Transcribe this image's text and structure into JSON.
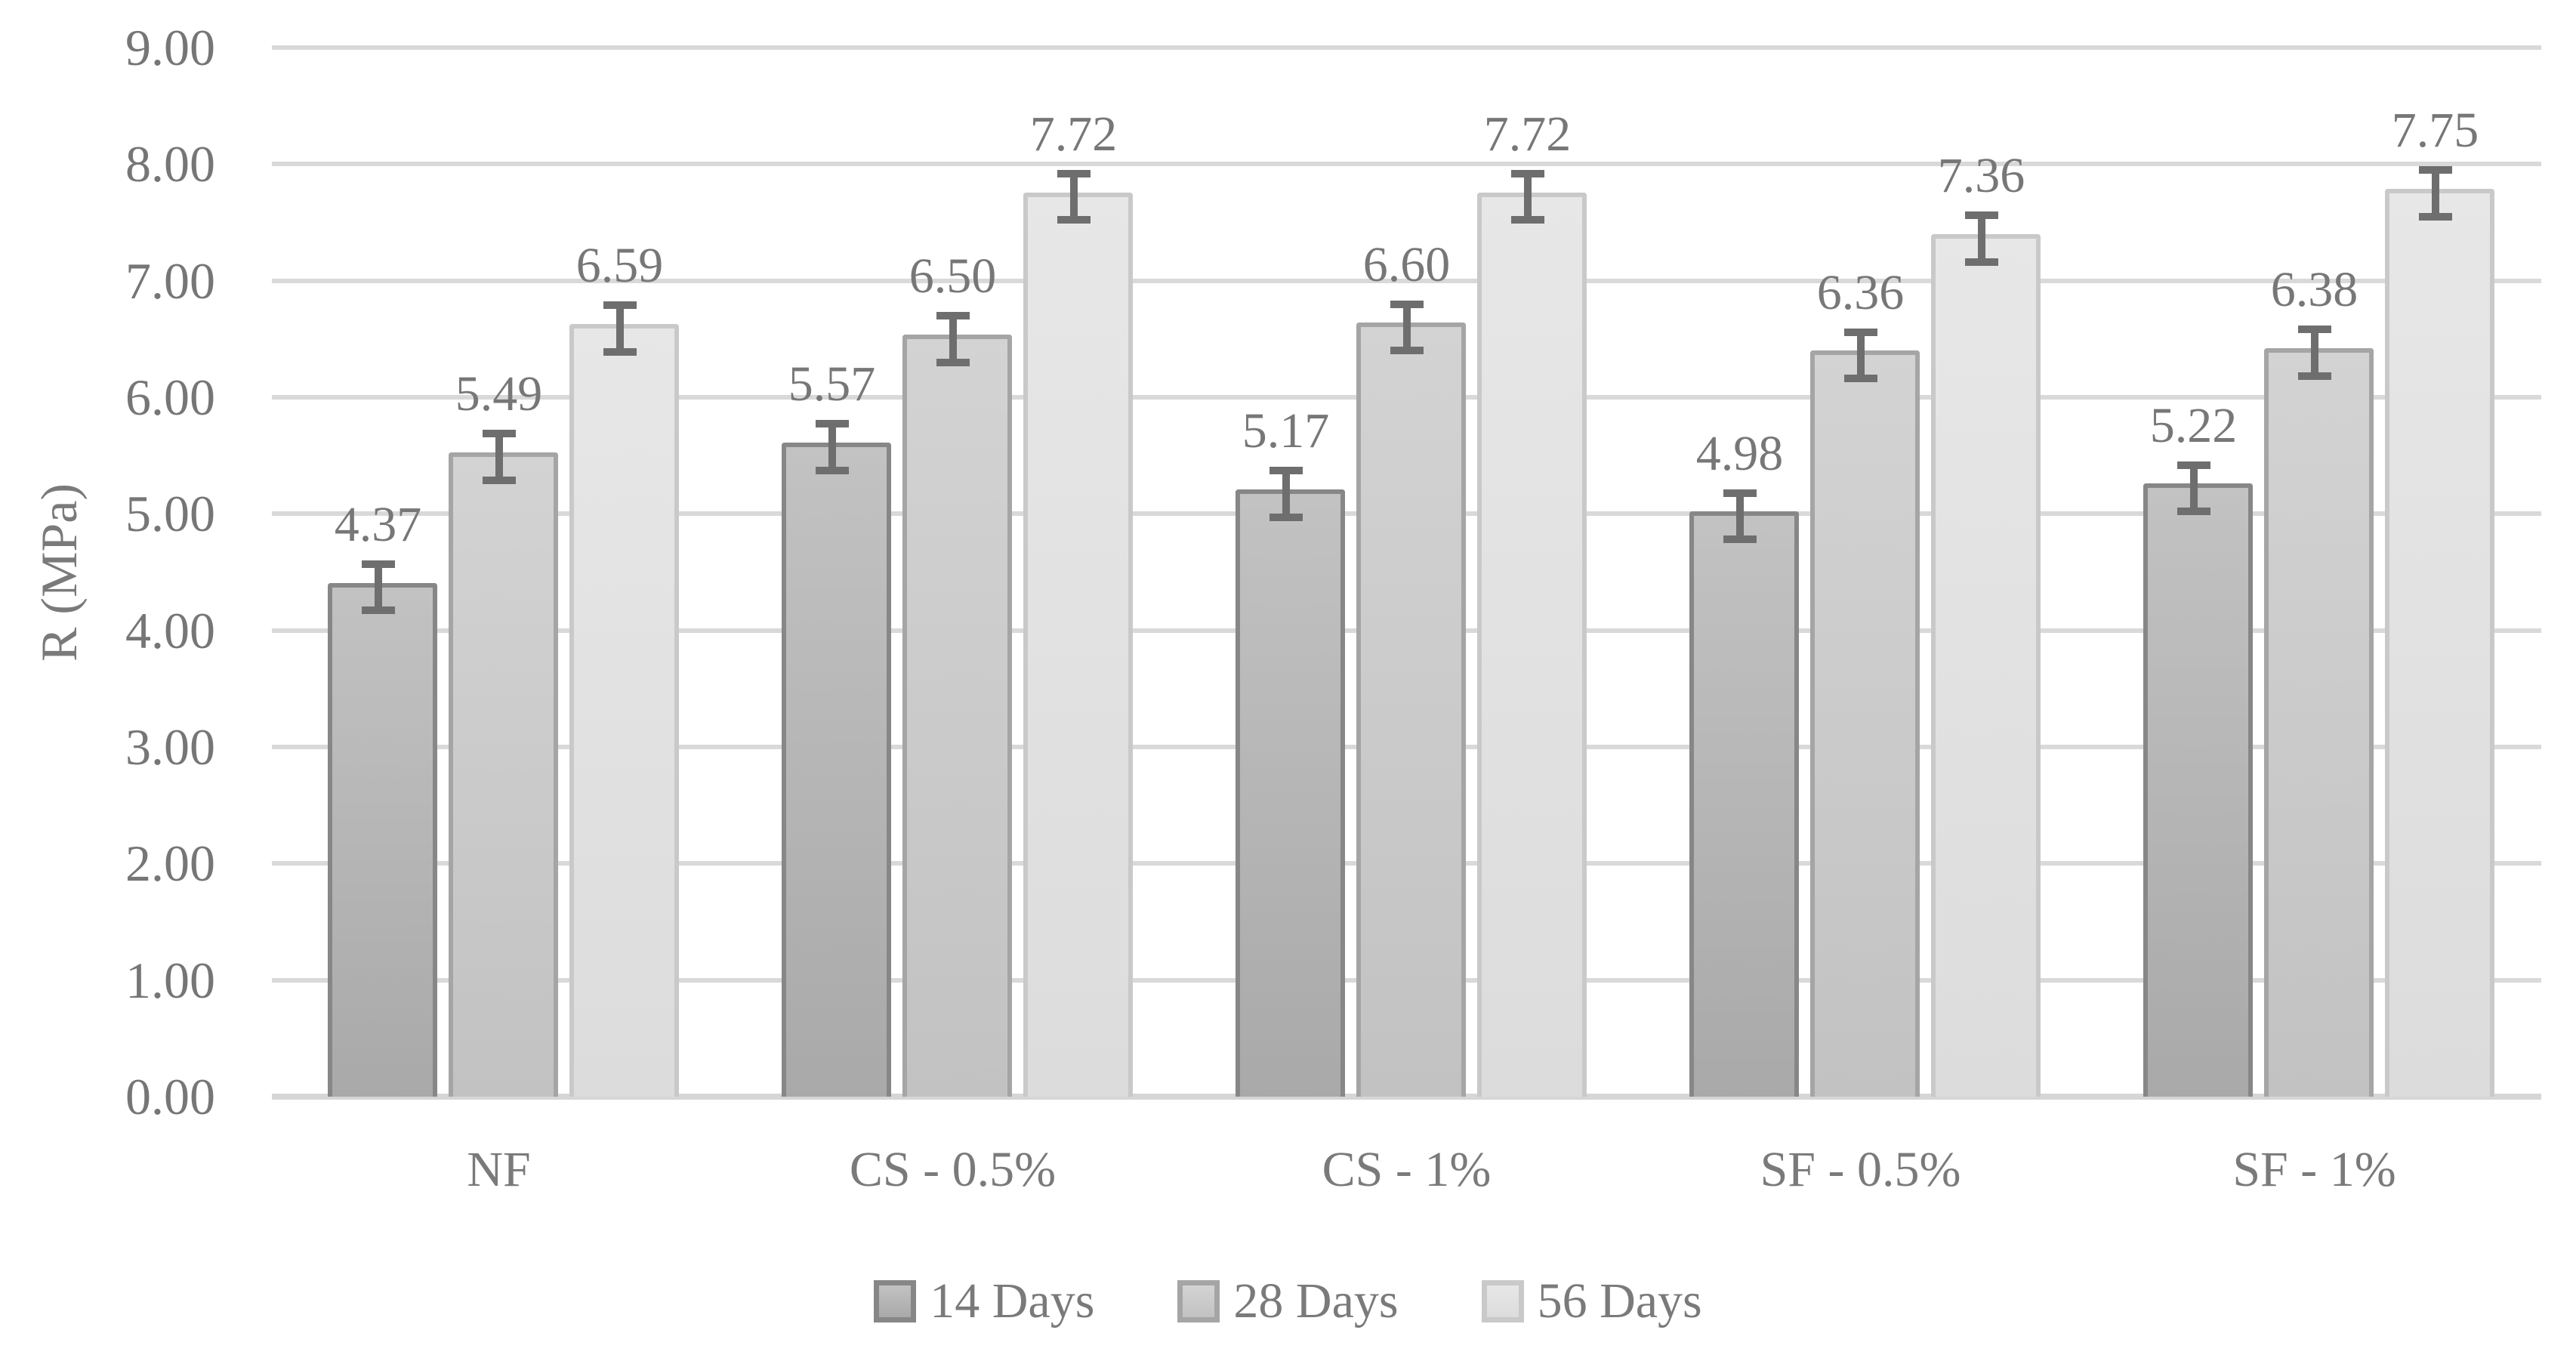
{
  "chart_data": {
    "type": "bar",
    "title": "",
    "xlabel": "",
    "ylabel": "R (MPa)",
    "ylim": [
      0,
      9
    ],
    "ytick_step": 1,
    "yticks": [
      "0.00",
      "1.00",
      "2.00",
      "3.00",
      "4.00",
      "5.00",
      "6.00",
      "7.00",
      "8.00",
      "9.00"
    ],
    "grid": true,
    "legend_position": "bottom",
    "categories": [
      "NF",
      "CS - 0.5%",
      "CS - 1%",
      "SF - 0.5%",
      "SF - 1%"
    ],
    "series": [
      {
        "name": "14 Days",
        "values": [
          4.37,
          5.57,
          5.17,
          4.98,
          5.22
        ],
        "labels": [
          "4.37",
          "5.57",
          "5.17",
          "4.98",
          "5.22"
        ],
        "fill_top": "#c2c2c2",
        "fill_bottom": "#a9a9a9",
        "border": "#878787"
      },
      {
        "name": "28 Days",
        "values": [
          5.49,
          6.5,
          6.6,
          6.36,
          6.38
        ],
        "labels": [
          "5.49",
          "6.50",
          "6.60",
          "6.36",
          "6.38"
        ],
        "fill_top": "#d3d3d3",
        "fill_bottom": "#c2c2c2",
        "border": "#a5a5a5"
      },
      {
        "name": "56 Days",
        "values": [
          6.59,
          7.72,
          7.72,
          7.36,
          7.75
        ],
        "labels": [
          "6.59",
          "7.72",
          "7.72",
          "7.36",
          "7.75"
        ],
        "fill_top": "#e7e7e7",
        "fill_bottom": "#dcdcdc",
        "border": "#c9c9c9"
      }
    ],
    "error_bar": {
      "value": 0.2,
      "color": "#6e6e6e"
    },
    "colors": {
      "gridline": "#d9d9d9",
      "axis_line": "#d6d6d6",
      "tick_text": "#767676",
      "label_text": "#7a7a7a",
      "data_label_text": "#777777"
    }
  }
}
